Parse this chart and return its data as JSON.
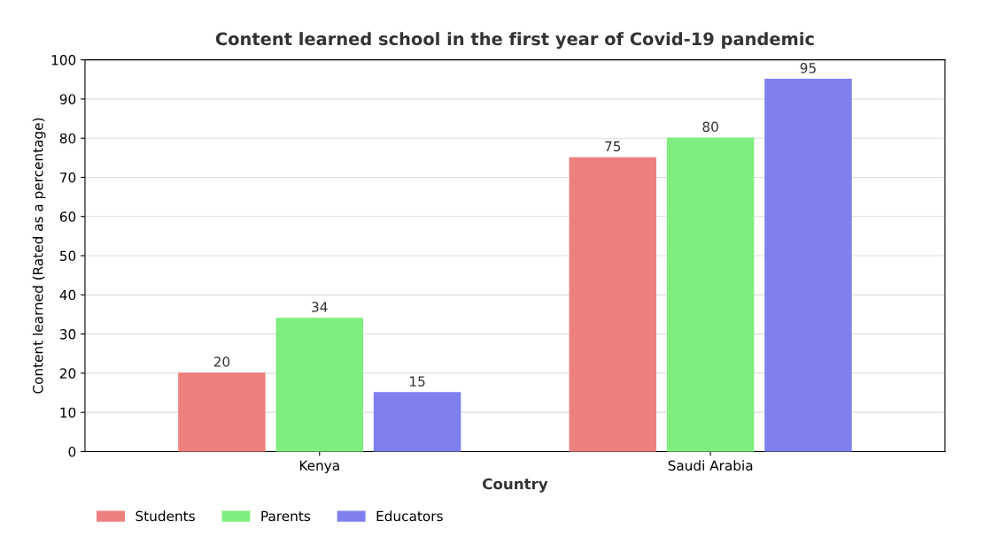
{
  "chart_data": {
    "type": "bar",
    "title": "Content learned school in the first year of Covid-19 pandemic",
    "xlabel": "Country",
    "ylabel": "Content learned (Rated as a percentage)",
    "categories": [
      "Kenya",
      "Saudi Arabia"
    ],
    "series": [
      {
        "name": "Students",
        "color": "#ee7f7f",
        "values": [
          20,
          75
        ]
      },
      {
        "name": "Parents",
        "color": "#7fee7f",
        "values": [
          34,
          80
        ]
      },
      {
        "name": "Educators",
        "color": "#7f7fee",
        "values": [
          15,
          95
        ]
      }
    ],
    "ylim": [
      0,
      100
    ],
    "yticks": [
      0,
      10,
      20,
      30,
      40,
      50,
      60,
      70,
      80,
      90,
      100
    ],
    "grid": "y",
    "legend": "bottom left",
    "data_labels": true
  }
}
